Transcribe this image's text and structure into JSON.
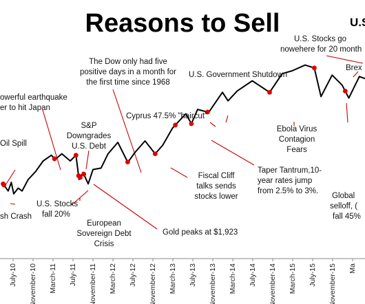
{
  "chart_data": {
    "type": "line",
    "title": "Reasons to Sell",
    "title_fragment": "U.S",
    "xlabel": "",
    "ylabel": "",
    "grid": false,
    "legend": "none",
    "line_color": "#000000",
    "marker_color": "#e00000",
    "x_ticks": [
      "July-10",
      "November-10",
      "March-11",
      "July-11",
      "November-11",
      "March-12",
      "July-12",
      "November-12",
      "March-13",
      "July-13",
      "November-13",
      "March-14",
      "July-14",
      "November-14",
      "March-15",
      "July-15",
      "November-15",
      "Ma"
    ],
    "series_approx_index": [
      [
        "2010-05-01",
        118
      ],
      [
        "2010-06-01",
        108
      ],
      [
        "2010-06-20",
        120
      ],
      [
        "2010-07-05",
        104
      ],
      [
        "2010-08-01",
        112
      ],
      [
        "2010-08-25",
        108
      ],
      [
        "2010-10-01",
        124
      ],
      [
        "2010-11-15",
        135
      ],
      [
        "2011-01-01",
        150
      ],
      [
        "2011-02-20",
        158
      ],
      [
        "2011-03-15",
        152
      ],
      [
        "2011-04-25",
        160
      ],
      [
        "2011-06-15",
        150
      ],
      [
        "2011-07-20",
        158
      ],
      [
        "2011-08-08",
        124
      ],
      [
        "2011-09-01",
        134
      ],
      [
        "2011-10-03",
        118
      ],
      [
        "2011-11-01",
        138
      ],
      [
        "2011-12-20",
        140
      ],
      [
        "2012-02-01",
        160
      ],
      [
        "2012-04-01",
        176
      ],
      [
        "2012-06-01",
        148
      ],
      [
        "2012-07-15",
        162
      ],
      [
        "2012-09-14",
        178
      ],
      [
        "2012-11-15",
        160
      ],
      [
        "2012-12-31",
        172
      ],
      [
        "2013-03-01",
        196
      ],
      [
        "2013-05-21",
        216
      ],
      [
        "2013-06-24",
        202
      ],
      [
        "2013-08-01",
        222
      ],
      [
        "2013-10-08",
        218
      ],
      [
        "2013-12-31",
        246
      ],
      [
        "2014-02-03",
        234
      ],
      [
        "2014-04-01",
        248
      ],
      [
        "2014-07-01",
        262
      ],
      [
        "2014-10-15",
        246
      ],
      [
        "2014-12-31",
        272
      ],
      [
        "2015-03-01",
        276
      ],
      [
        "2015-05-20",
        284
      ],
      [
        "2015-07-15",
        280
      ],
      [
        "2015-08-25",
        240
      ],
      [
        "2015-11-01",
        270
      ],
      [
        "2016-01-01",
        256
      ],
      [
        "2016-02-11",
        238
      ],
      [
        "2016-04-15",
        268
      ],
      [
        "2016-06-27",
        262
      ],
      [
        "2016-08-01",
        282
      ]
    ],
    "events": [
      {
        "label": "Oil Spill",
        "date": "2010-05-01"
      },
      {
        "label": "sh Crash",
        "date": "2010-05-06"
      },
      {
        "label": "owerful earthquake",
        "date": "2011-03-11"
      },
      {
        "label": "er to hit Japan",
        "date": "2011-03-11"
      },
      {
        "label": "U.S. Stocks fall 20%",
        "date": "2011-07-20"
      },
      {
        "label": "S&P Downgrades U.S. Debt",
        "date": "2011-08-05"
      },
      {
        "label": "European Sovereign Debt Crisis",
        "date": "2011-08-15"
      },
      {
        "label": "Gold peaks at $1,923",
        "date": "2011-09-06"
      },
      {
        "label": "The Dow only had five positive days in a month for the first time since 1968",
        "date": "2012-05-31"
      },
      {
        "label": "Fiscal Cliff talks sends stocks lower",
        "date": "2012-11-15"
      },
      {
        "label": "Cyprus 47.5% \"haircut\"",
        "date": "2013-03-18"
      },
      {
        "label": "Taper Tantrum,10-year rates jump from 2.5% to 3%.",
        "date": "2013-06-24"
      },
      {
        "label": "U.S. Government Shutdown",
        "date": "2013-10-01"
      },
      {
        "label": "Ebola Virus Contagion Fears",
        "date": "2014-10-15"
      },
      {
        "label": "U.S. Stocks go nowhere for 20 month",
        "date": "2015-07-15"
      },
      {
        "label": "Brex",
        "date": "2016-06-27"
      },
      {
        "label": "Global selloff, fall 45",
        "date": "2016-01-20"
      }
    ]
  },
  "labels": {
    "title": "Reasons to Sell",
    "title_fragment": "U.S",
    "oil_spill": "Oil Spill",
    "flash_crash": "sh Crash",
    "earthquake_1": "owerful earthquake",
    "earthquake_2": "er to hit Japan",
    "stocks20_1": "U.S. Stocks",
    "stocks20_2": "fall 20%",
    "sp_1": "S&P",
    "sp_2": "Downgrades",
    "sp_3": "U.S. Debt",
    "euro_1": "European",
    "euro_2": "Sovereign Debt",
    "euro_3": "Crisis",
    "gold": "Gold peaks at $1,923",
    "dow_1": "The Dow only had five",
    "dow_2": "positive days in a month for",
    "dow_3": "the first time since 1968",
    "cliff_1": "Fiscal Cliff",
    "cliff_2": "talks sends",
    "cliff_3": "stocks lower",
    "cyprus": "Cyprus 47.5% \"haircut\"",
    "taper_1": "Taper Tantrum,10-",
    "taper_2": "year rates jump",
    "taper_3": "from 2.5% to 3%.",
    "shutdown": "U.S. Government  Shutdown",
    "ebola_1": "Ebola Virus",
    "ebola_2": "Contagion",
    "ebola_3": "Fears",
    "nowhere_1": "U.S. Stocks go",
    "nowhere_2": "nowehere for 20 month",
    "brexit": "Brex",
    "global_1": "Global",
    "global_2": "selloff, (",
    "global_3": "fall 45%"
  }
}
